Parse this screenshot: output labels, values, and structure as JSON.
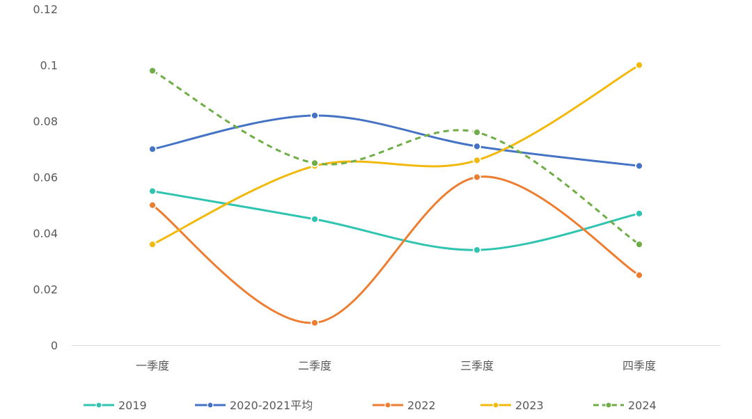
{
  "chart_data": {
    "type": "line",
    "categories": [
      "一季度",
      "二季度",
      "三季度",
      "四季度"
    ],
    "ylim": [
      0,
      0.12
    ],
    "yticks": [
      "0",
      "0.02",
      "0.04",
      "0.06",
      "0.08",
      "0.1",
      "0.12"
    ],
    "grid": false,
    "legend_position": "bottom",
    "smooth": true,
    "series": [
      {
        "name": "2019",
        "values": [
          0.055,
          0.045,
          0.034,
          0.047
        ],
        "color": "#2EC4B0",
        "dashed": false
      },
      {
        "name": "2020-2021平均",
        "values": [
          0.07,
          0.082,
          0.071,
          0.064
        ],
        "color": "#4472C4",
        "dashed": false
      },
      {
        "name": "2022",
        "values": [
          0.05,
          0.008,
          0.06,
          0.025
        ],
        "color": "#ED7D31",
        "dashed": false
      },
      {
        "name": "2023",
        "values": [
          0.036,
          0.064,
          0.066,
          0.1
        ],
        "color": "#F2B90C",
        "dashed": false
      },
      {
        "name": "2024",
        "values": [
          0.098,
          0.065,
          0.076,
          0.036
        ],
        "color": "#70AD47",
        "dashed": true
      }
    ]
  }
}
